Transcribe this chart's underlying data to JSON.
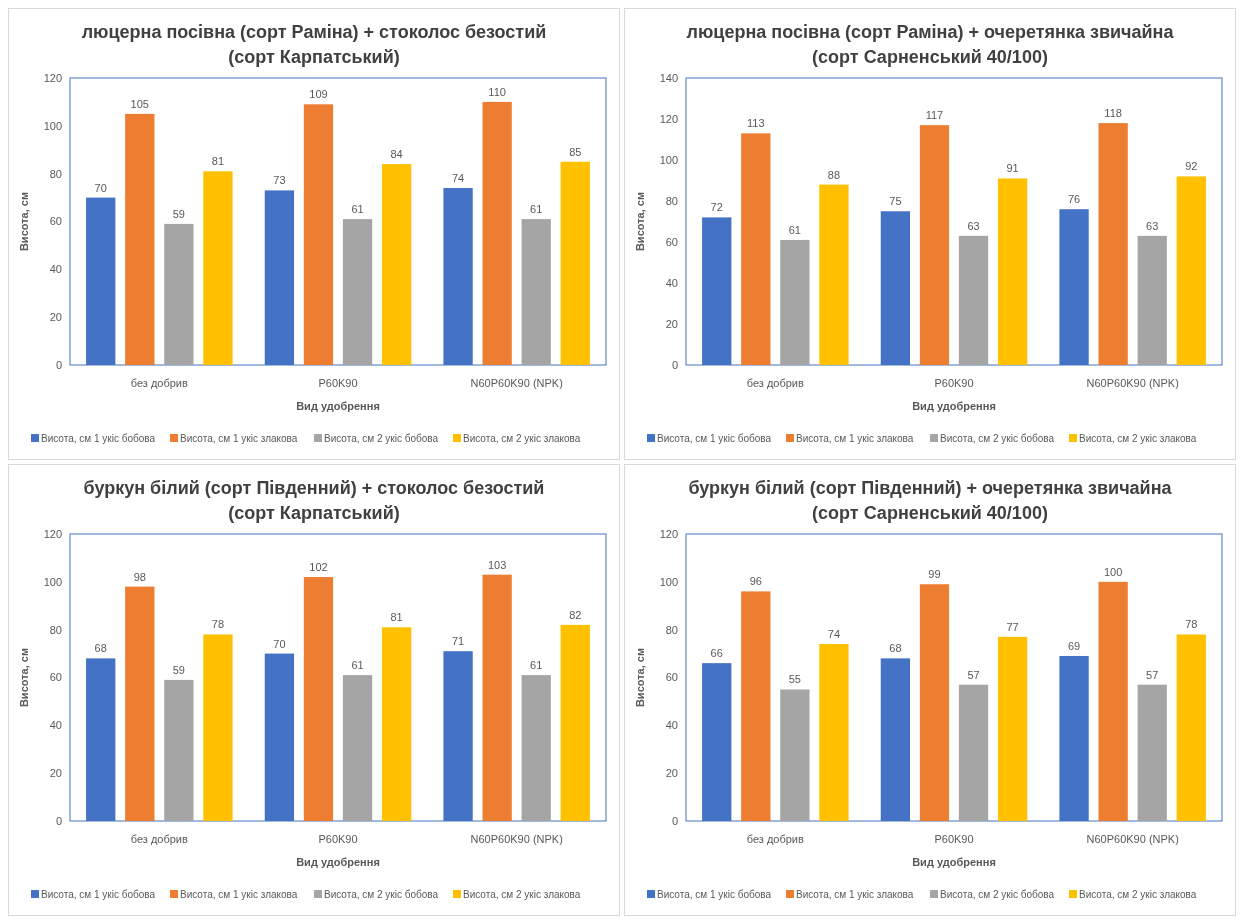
{
  "chart_data": [
    {
      "type": "bar",
      "title": "люцерна посівна (сорт Раміна) + стоколос безостий (сорт Карпатський)",
      "xlabel": "Вид удобрення",
      "ylabel": "Висота, см",
      "categories": [
        "без добрив",
        "P60K90",
        "N60P60K90 (NPK)"
      ],
      "ylim": [
        0,
        120
      ],
      "yticks": [
        0,
        20,
        40,
        60,
        80,
        100,
        120
      ],
      "data_labels": true,
      "legend": "bottom",
      "grid": false,
      "series": [
        {
          "name": "Висота, см 1 укіс бобова",
          "color": "#4472c4",
          "values": [
            70,
            73,
            74
          ]
        },
        {
          "name": "Висота, см 1 укіс злакова",
          "color": "#ed7d31",
          "values": [
            105,
            109,
            110
          ]
        },
        {
          "name": "Висота, см 2 укіс бобова",
          "color": "#a5a5a5",
          "values": [
            59,
            61,
            61
          ]
        },
        {
          "name": "Висота, см 2 укіс злакова",
          "color": "#ffc000",
          "values": [
            81,
            84,
            85
          ]
        }
      ]
    },
    {
      "type": "bar",
      "title": "люцерна посівна (сорт Раміна) + очеретянка звичайна (сорт Сарненський 40/100)",
      "xlabel": "Вид удобрення",
      "ylabel": "Висота, см",
      "categories": [
        "без добрив",
        "P60K90",
        "N60P60K90 (NPK)"
      ],
      "ylim": [
        0,
        140
      ],
      "yticks": [
        0,
        20,
        40,
        60,
        80,
        100,
        120,
        140
      ],
      "data_labels": true,
      "legend": "bottom",
      "grid": false,
      "series": [
        {
          "name": "Висота, см 1 укіс бобова",
          "color": "#4472c4",
          "values": [
            72,
            75,
            76
          ]
        },
        {
          "name": "Висота, см 1 укіс злакова",
          "color": "#ed7d31",
          "values": [
            113,
            117,
            118
          ]
        },
        {
          "name": "Висота, см 2 укіс бобова",
          "color": "#a5a5a5",
          "values": [
            61,
            63,
            63
          ]
        },
        {
          "name": "Висота, см 2 укіс злакова",
          "color": "#ffc000",
          "values": [
            88,
            91,
            92
          ]
        }
      ]
    },
    {
      "type": "bar",
      "title": "буркун білий (сорт Південний) + стоколос безостий (сорт Карпатський)",
      "xlabel": "Вид удобрення",
      "ylabel": "Висота, см",
      "categories": [
        "без добрив",
        "P60K90",
        "N60P60K90 (NPK)"
      ],
      "ylim": [
        0,
        120
      ],
      "yticks": [
        0,
        20,
        40,
        60,
        80,
        100,
        120
      ],
      "data_labels": true,
      "legend": "bottom",
      "grid": false,
      "series": [
        {
          "name": "Висота, см 1 укіс бобова",
          "color": "#4472c4",
          "values": [
            68,
            70,
            71
          ]
        },
        {
          "name": "Висота, см 1 укіс злакова",
          "color": "#ed7d31",
          "values": [
            98,
            102,
            103
          ]
        },
        {
          "name": "Висота, см 2 укіс бобова",
          "color": "#a5a5a5",
          "values": [
            59,
            61,
            61
          ]
        },
        {
          "name": "Висота, см 2 укіс злакова",
          "color": "#ffc000",
          "values": [
            78,
            81,
            82
          ]
        }
      ]
    },
    {
      "type": "bar",
      "title": "буркун білий (сорт Південний) + очеретянка звичайна (сорт Сарненський 40/100)",
      "xlabel": "Вид удобрення",
      "ylabel": "Висота, см",
      "categories": [
        "без добрив",
        "P60K90",
        "N60P60K90 (NPK)"
      ],
      "ylim": [
        0,
        120
      ],
      "yticks": [
        0,
        20,
        40,
        60,
        80,
        100,
        120
      ],
      "data_labels": true,
      "legend": "bottom",
      "grid": false,
      "series": [
        {
          "name": "Висота, см 1 укіс бобова",
          "color": "#4472c4",
          "values": [
            66,
            68,
            69
          ]
        },
        {
          "name": "Висота, см 1 укіс злакова",
          "color": "#ed7d31",
          "values": [
            96,
            99,
            100
          ]
        },
        {
          "name": "Висота, см 2 укіс бобова",
          "color": "#a5a5a5",
          "values": [
            55,
            57,
            57
          ]
        },
        {
          "name": "Висота, см 2 укіс злакова",
          "color": "#ffc000",
          "values": [
            74,
            77,
            78
          ]
        }
      ]
    }
  ]
}
